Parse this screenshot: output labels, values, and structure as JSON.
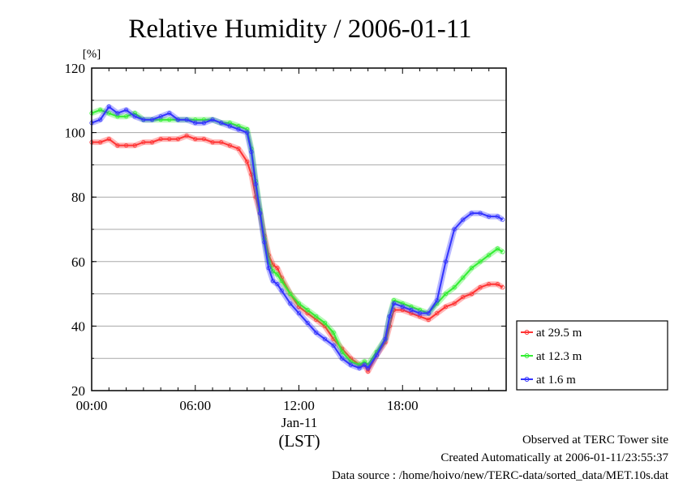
{
  "chart_data": {
    "type": "line",
    "title": "Relative Humidity / 2006-01-11",
    "ylabel": "[%]",
    "xlabel": "(LST)",
    "date_label": "Jan-11",
    "ylim": [
      20,
      120
    ],
    "xlim": [
      0,
      24
    ],
    "y_ticks": [
      20,
      40,
      60,
      80,
      100,
      120
    ],
    "x_ticks": [
      {
        "x": 0,
        "label": "00:00"
      },
      {
        "x": 6,
        "label": "06:00"
      },
      {
        "x": 12,
        "label": "12:00"
      },
      {
        "x": 18,
        "label": "18:00"
      }
    ],
    "grid": true,
    "legend_position": "right",
    "x": [
      0,
      0.5,
      1,
      1.5,
      2,
      2.5,
      3,
      3.5,
      4,
      4.5,
      5,
      5.5,
      6,
      6.5,
      7,
      7.5,
      8,
      8.5,
      9,
      9.25,
      9.5,
      9.75,
      10,
      10.25,
      10.5,
      10.75,
      11,
      11.5,
      12,
      12.5,
      13,
      13.5,
      14,
      14.5,
      15,
      15.5,
      15.8,
      16,
      16.5,
      17,
      17.25,
      17.5,
      18,
      18.5,
      19,
      19.5,
      20,
      20.5,
      21,
      21.5,
      22,
      22.5,
      23,
      23.5,
      23.8
    ],
    "series": [
      {
        "name": "at 29.5 m",
        "color": "#ff3333",
        "values": [
          97,
          97,
          98,
          96,
          96,
          96,
          97,
          97,
          98,
          98,
          98,
          99,
          98,
          98,
          97,
          97,
          96,
          95,
          91,
          87,
          80,
          75,
          68,
          62,
          59,
          58,
          55,
          50,
          46,
          44,
          42,
          40,
          36,
          33,
          30,
          28,
          28,
          26,
          31,
          35,
          40,
          45,
          45,
          44,
          43,
          42,
          44,
          46,
          47,
          49,
          50,
          52,
          53,
          53,
          52
        ]
      },
      {
        "name": "at 12.3 m",
        "color": "#33ee33",
        "values": [
          106,
          107,
          106,
          105,
          105,
          106,
          104,
          104,
          104,
          104,
          104,
          104,
          104,
          104,
          104,
          103,
          103,
          102,
          101,
          95,
          85,
          76,
          67,
          60,
          57,
          56,
          54,
          50,
          47,
          45,
          43,
          41,
          38,
          32,
          29,
          28,
          29,
          28,
          32,
          36,
          43,
          48,
          47,
          46,
          45,
          44,
          47,
          50,
          52,
          55,
          58,
          60,
          62,
          64,
          63
        ]
      },
      {
        "name": "at 1.6 m",
        "color": "#3333ff",
        "values": [
          103,
          104,
          108,
          106,
          107,
          105,
          104,
          104,
          105,
          106,
          104,
          104,
          103,
          103,
          104,
          103,
          102,
          101,
          100,
          94,
          84,
          75,
          66,
          58,
          54,
          53,
          51,
          47,
          44,
          41,
          38,
          36,
          34,
          30,
          28,
          27,
          28,
          27,
          31,
          36,
          43,
          47,
          46,
          45,
          44,
          44,
          48,
          60,
          70,
          73,
          75,
          75,
          74,
          74,
          73
        ]
      }
    ]
  },
  "footer": {
    "observed": "Observed at TERC Tower site",
    "created": "Created Automatically at 2006-01-11/23:55:37",
    "source": "Data source : /home/hoivo/new/TERC-data/sorted_data/MET.10s.dat"
  }
}
